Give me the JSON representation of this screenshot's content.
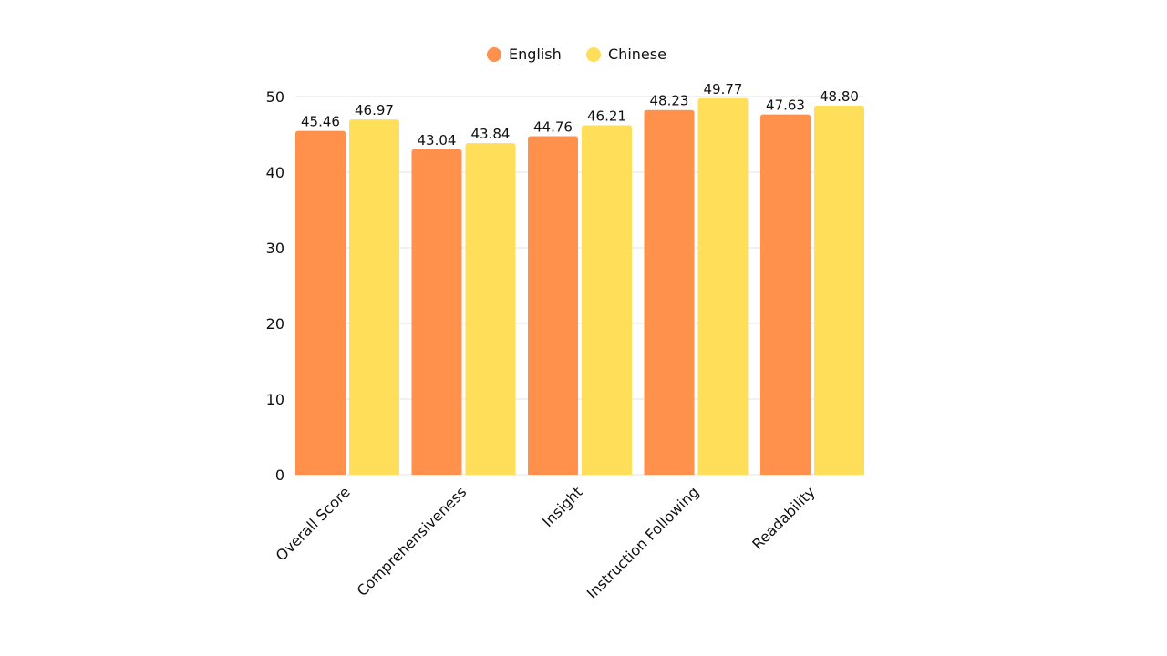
{
  "chart_data": {
    "type": "bar",
    "categories": [
      "Overall Score",
      "Comprehensiveness",
      "Insight",
      "Instruction Following",
      "Readability"
    ],
    "series": [
      {
        "name": "English",
        "color": "#FF914D",
        "values": [
          45.46,
          43.04,
          44.76,
          48.23,
          47.63
        ],
        "labels": [
          "45.46",
          "43.04",
          "44.76",
          "48.23",
          "47.63"
        ]
      },
      {
        "name": "Chinese",
        "color": "#FFDE59",
        "values": [
          46.97,
          43.84,
          46.21,
          49.77,
          48.8
        ],
        "labels": [
          "46.97",
          "43.84",
          "46.21",
          "49.77",
          "48.80"
        ]
      }
    ],
    "yticks": [
      "0",
      "10",
      "20",
      "30",
      "40",
      "50"
    ],
    "ylim": [
      0,
      50
    ],
    "grid": true,
    "legend_position": "top-center",
    "title": "",
    "xlabel": "",
    "ylabel": ""
  }
}
